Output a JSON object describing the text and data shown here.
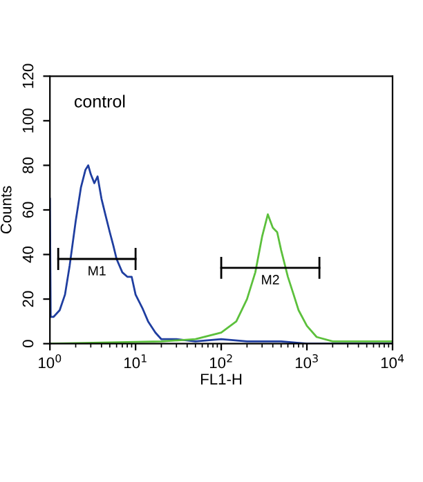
{
  "chart_data": {
    "type": "line",
    "xlabel": "FL1-H",
    "ylabel": "Counts",
    "log": "x",
    "grid": false,
    "legend": false,
    "marker": "none",
    "line_style": "solid",
    "xlim": [
      1,
      10000
    ],
    "xticks": [
      {
        "value": 1,
        "label": "10$^{0}$"
      },
      {
        "value": 10,
        "label": "10$^{1}$"
      },
      {
        "value": 100,
        "label": "10$^{2}$"
      },
      {
        "value": 1000,
        "label": "10$^{3}$"
      },
      {
        "value": 10000,
        "label": "10$^{4}$"
      }
    ],
    "ylim": [
      0,
      120
    ],
    "yticks": [
      0,
      20,
      40,
      60,
      80,
      100,
      120
    ],
    "annotations": [
      "control"
    ],
    "series": [
      {
        "color": "#1f3ea0",
        "x": [
          1,
          1.02,
          1.1,
          1.3,
          1.5,
          1.7,
          2,
          2.3,
          2.6,
          2.8,
          3,
          3.3,
          3.6,
          4,
          4.5,
          5,
          5.5,
          6,
          7,
          8,
          9,
          10,
          12,
          14,
          17,
          20,
          30,
          50,
          100,
          200,
          500,
          1000,
          10000
        ],
        "values": [
          65,
          12,
          12,
          15,
          22,
          35,
          55,
          70,
          78,
          80,
          76,
          72,
          75,
          65,
          57,
          50,
          44,
          38,
          32,
          30,
          30,
          22,
          16,
          10,
          5,
          2,
          2,
          1,
          2,
          1,
          1,
          0,
          0
        ]
      },
      {
        "color": "#5cc03c",
        "x": [
          1,
          20,
          50,
          100,
          150,
          200,
          250,
          300,
          350,
          400,
          450,
          500,
          600,
          700,
          800,
          1000,
          1300,
          2000,
          10000
        ],
        "values": [
          0,
          1,
          2,
          5,
          10,
          20,
          32,
          48,
          58,
          52,
          50,
          42,
          30,
          22,
          15,
          8,
          3,
          1,
          1
        ]
      },
      {
        "name": "M1",
        "color": "#000000",
        "x": [
          1.25,
          10
        ],
        "values": [
          38,
          38
        ]
      },
      {
        "name": "M2",
        "color": "#000000",
        "x": [
          100,
          1400
        ],
        "values": [
          34,
          34
        ]
      }
    ]
  }
}
